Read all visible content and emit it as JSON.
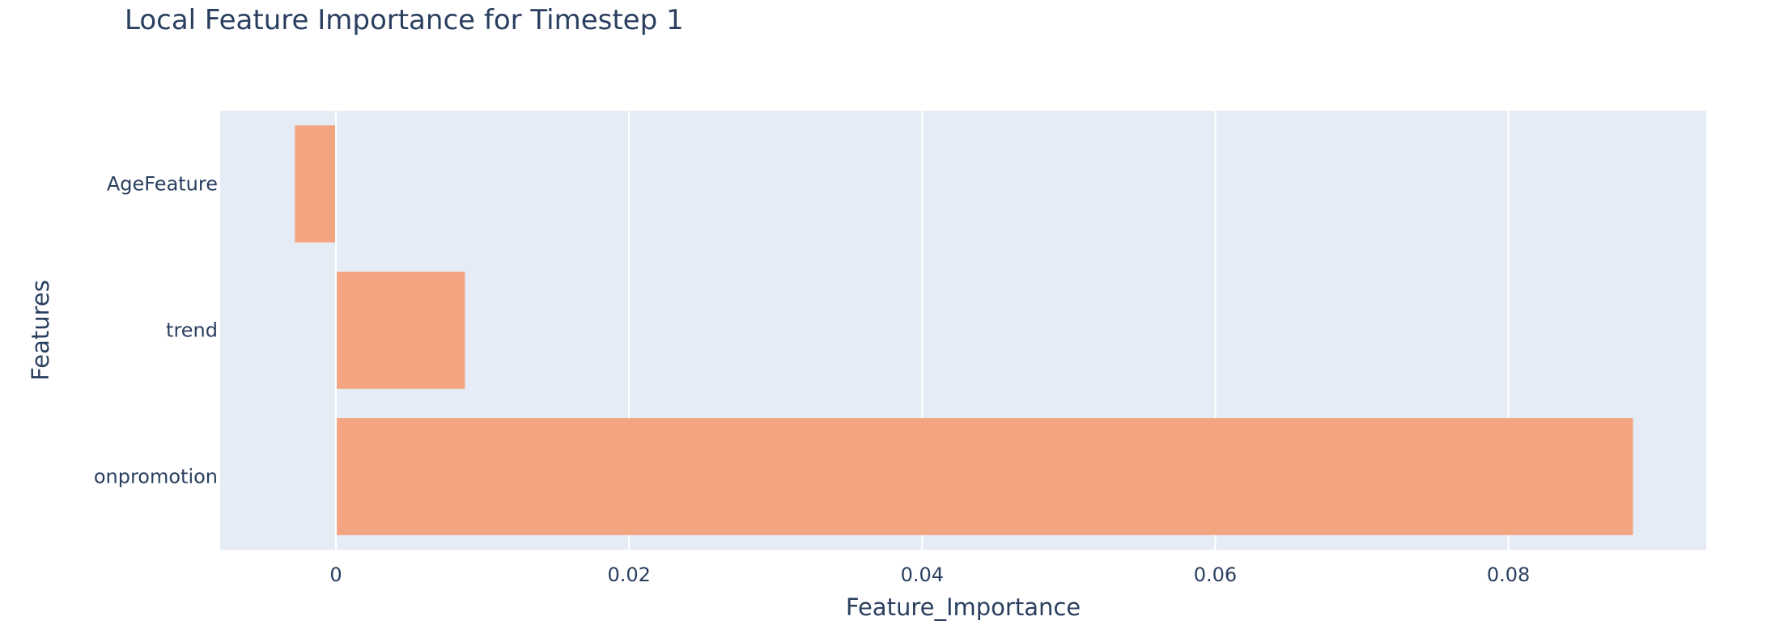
{
  "chart_data": {
    "type": "bar",
    "orientation": "horizontal",
    "title": "Local Feature Importance for Timestep 1",
    "xlabel": "Feature_Importance",
    "ylabel": "Features",
    "categories": [
      "AgeFeature",
      "trend",
      "onpromotion"
    ],
    "values": [
      -0.0028,
      0.0088,
      0.0885
    ],
    "xlim": [
      -0.0079,
      0.0935
    ],
    "xticks": [
      0,
      0.02,
      0.04,
      0.06,
      0.08
    ],
    "xtick_labels": [
      "0",
      "0.02",
      "0.04",
      "0.06",
      "0.08"
    ],
    "grid": true,
    "legend": "none",
    "colors": {
      "bar": "#f3a582",
      "plot_bg": "#e5ecf6",
      "grid": "#ffffff",
      "text": "#2a3f5f"
    }
  }
}
